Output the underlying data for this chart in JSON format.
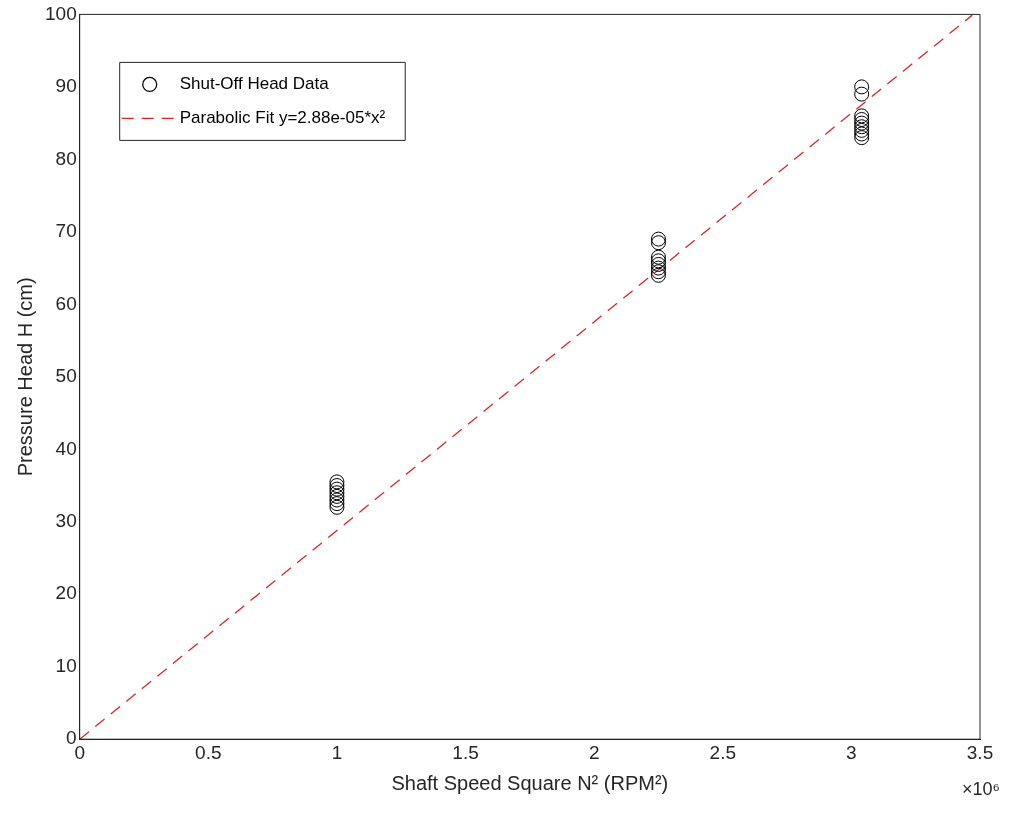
{
  "chart_data": {
    "type": "scatter",
    "xlabel": "Shaft Speed Square N² (RPM²)",
    "ylabel": "Pressure Head H (cm)",
    "xlim": [
      0,
      3.5
    ],
    "xticks": [
      0,
      0.5,
      1,
      1.5,
      2,
      2.5,
      3,
      3.5
    ],
    "ylim": [
      0,
      100
    ],
    "yticks": [
      0,
      10,
      20,
      30,
      40,
      50,
      60,
      70,
      80,
      90,
      100
    ],
    "grid": false,
    "legend": "top left",
    "annotations": [
      "×10⁶"
    ],
    "series": [
      {
        "name": "Shut-Off Head Data",
        "type": "scatter",
        "marker": "circle",
        "color": "#000000",
        "x": [
          1,
          1,
          1,
          1,
          1,
          1,
          1,
          1,
          2.25,
          2.25,
          2.25,
          2.25,
          2.25,
          2.25,
          2.25,
          2.25,
          3.04,
          3.04,
          3.04,
          3.04,
          3.04,
          3.04,
          3.04,
          3.04,
          3.04
        ],
        "values": [
          32,
          32.5,
          33,
          33.5,
          34,
          34.5,
          35,
          35.5,
          64,
          64.5,
          65,
          65.5,
          66,
          66.5,
          68.5,
          69,
          83,
          83.5,
          84,
          84.5,
          85,
          85.5,
          86,
          89,
          90
        ]
      },
      {
        "name": "Parabolic Fit y=2.88e-05*x²",
        "type": "line",
        "marker": "none",
        "line_style": "dashed",
        "color": "#d62728",
        "x": [
          0,
          3.47
        ],
        "values": [
          0,
          99.9
        ]
      }
    ]
  }
}
